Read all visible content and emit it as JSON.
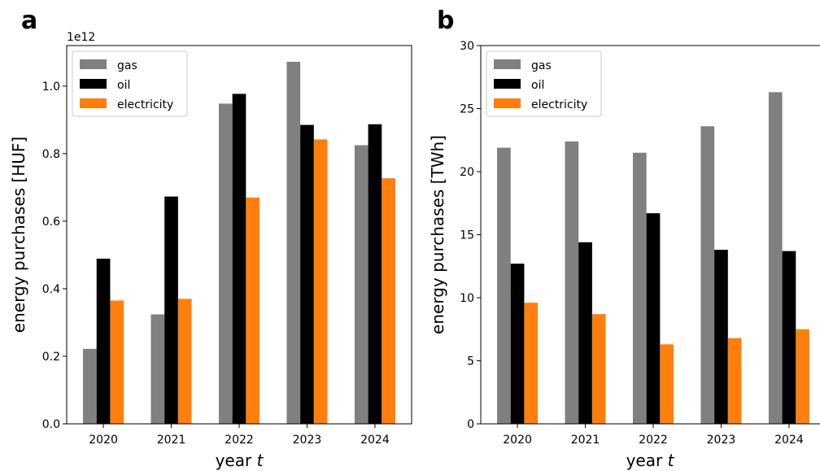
{
  "chart_data": [
    {
      "type": "bar",
      "panel_label": "a",
      "offset_text": "1e12",
      "categories": [
        "2020",
        "2021",
        "2022",
        "2023",
        "2024"
      ],
      "series": [
        {
          "name": "gas",
          "values": [
            0.222,
            0.324,
            0.948,
            1.072,
            0.825
          ]
        },
        {
          "name": "oil",
          "values": [
            0.489,
            0.673,
            0.977,
            0.885,
            0.887
          ]
        },
        {
          "name": "electricity",
          "values": [
            0.365,
            0.37,
            0.67,
            0.842,
            0.727
          ]
        }
      ],
      "xlabel_main": "year ",
      "xlabel_italic": "t",
      "ylabel": "energy purchases [HUF]",
      "ylim": [
        0,
        1.12
      ],
      "yticks": [
        0.0,
        0.2,
        0.4,
        0.6,
        0.8,
        1.0
      ],
      "ytick_labels": [
        "0.0",
        "0.2",
        "0.4",
        "0.6",
        "0.8",
        "1.0"
      ],
      "legend_position": "top-left",
      "grid": false
    },
    {
      "type": "bar",
      "panel_label": "b",
      "categories": [
        "2020",
        "2021",
        "2022",
        "2023",
        "2024"
      ],
      "series": [
        {
          "name": "gas",
          "values": [
            21.9,
            22.4,
            21.5,
            23.6,
            26.3
          ]
        },
        {
          "name": "oil",
          "values": [
            12.7,
            14.4,
            16.7,
            13.8,
            13.7
          ]
        },
        {
          "name": "electricity",
          "values": [
            9.6,
            8.7,
            6.3,
            6.8,
            7.5
          ]
        }
      ],
      "xlabel_main": "year ",
      "xlabel_italic": "t",
      "ylabel": "energy purchases [TWh]",
      "ylim": [
        0,
        30
      ],
      "yticks": [
        0,
        5,
        10,
        15,
        20,
        25,
        30
      ],
      "ytick_labels": [
        "0",
        "5",
        "10",
        "15",
        "20",
        "25",
        "30"
      ],
      "legend_position": "top-left",
      "grid": false
    }
  ],
  "colors": {
    "gas": "#808080",
    "oil": "#000000",
    "electricity": "#ff7f0e"
  }
}
